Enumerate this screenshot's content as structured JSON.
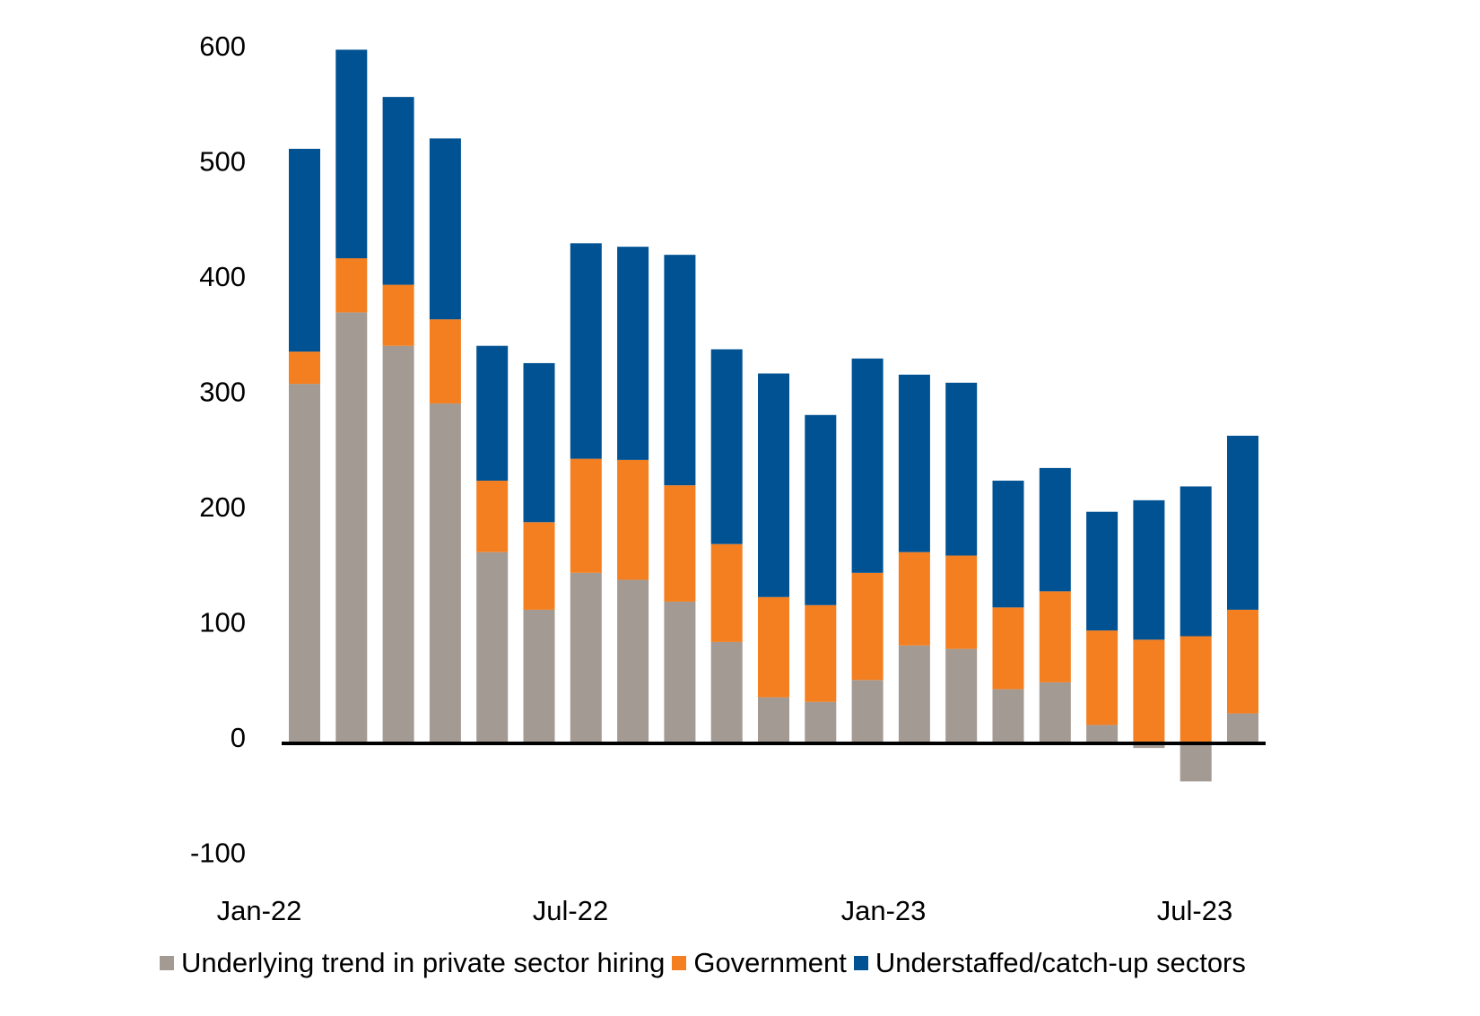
{
  "chart_data": {
    "type": "bar",
    "stacked": true,
    "title": "",
    "xlabel": "",
    "ylabel": "",
    "ylim": [
      -100,
      600
    ],
    "yticks": [
      600,
      500,
      400,
      300,
      200,
      100,
      0,
      -100
    ],
    "grid": false,
    "legend_position": "bottom",
    "categories": [
      "Jan-22",
      "Feb-22",
      "Mar-22",
      "Apr-22",
      "May-22",
      "Jun-22",
      "Jul-22",
      "Aug-22",
      "Sep-22",
      "Oct-22",
      "Nov-22",
      "Dec-22",
      "Jan-23",
      "Feb-23",
      "Mar-23",
      "Apr-23",
      "May-23",
      "Jun-23",
      "Jul-23",
      "Aug-23",
      "Sep-23"
    ],
    "xtick_labels": [
      {
        "index": 0,
        "label": "Jan-22"
      },
      {
        "index": 6,
        "label": "Jul-22"
      },
      {
        "index": 12,
        "label": "Jan-23"
      },
      {
        "index": 18,
        "label": "Jul-23"
      }
    ],
    "series": [
      {
        "name": "Underlying trend in private sector hiring",
        "color": "#A39A93",
        "values": [
          312,
          374,
          345,
          295,
          166,
          116,
          148,
          142,
          123,
          88,
          40,
          36,
          55,
          85,
          82,
          47,
          53,
          16,
          -4,
          -33,
          26
        ]
      },
      {
        "name": "Government",
        "color": "#F47F20",
        "values": [
          28,
          47,
          53,
          73,
          62,
          76,
          99,
          104,
          101,
          85,
          87,
          84,
          93,
          81,
          81,
          71,
          79,
          82,
          90,
          93,
          90
        ]
      },
      {
        "name": "Understaffed/catch-up sectors",
        "color": "#005293",
        "values": [
          176,
          181,
          163,
          157,
          117,
          138,
          187,
          185,
          200,
          169,
          194,
          165,
          186,
          154,
          150,
          110,
          107,
          103,
          121,
          130,
          151
        ]
      }
    ]
  }
}
